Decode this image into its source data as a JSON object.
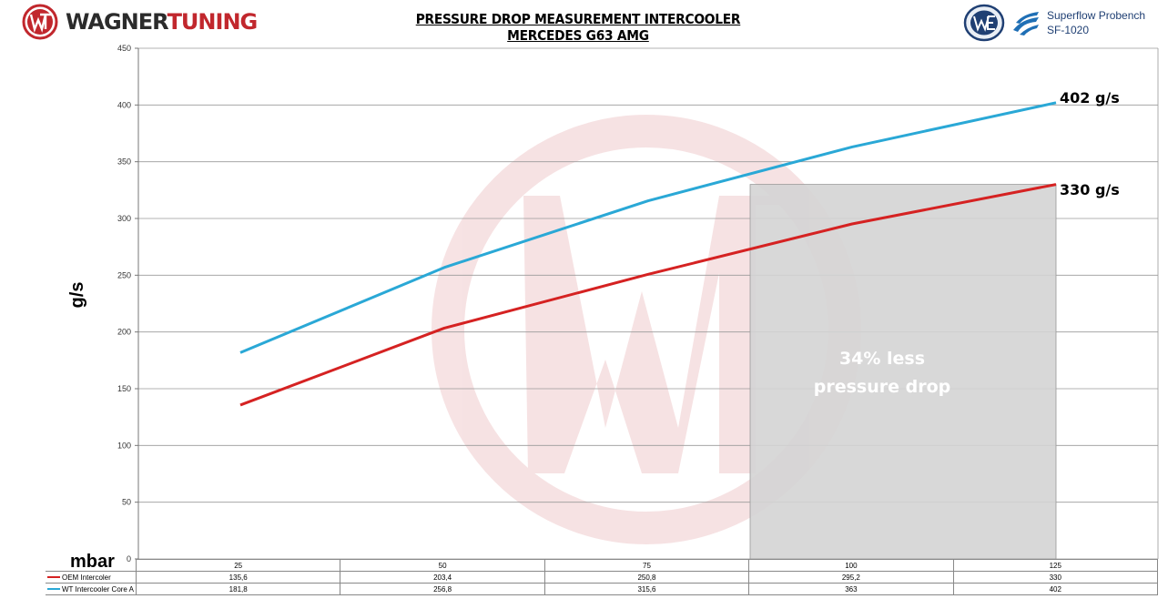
{
  "header": {
    "brand_part1": "WAGNER",
    "brand_part2": "TUNING",
    "bench_line1": "Superflow Probench",
    "bench_line2": "SF-1020"
  },
  "chart_data": {
    "type": "line",
    "title": "PRESSURE DROP MEASUREMENT INTERCOOLER MERCEDES G63 AMG",
    "xlabel": "mbar",
    "ylabel": "g/s",
    "categories": [
      "25",
      "50",
      "75",
      "100",
      "125"
    ],
    "ylim": [
      0,
      450
    ],
    "yticks": [
      0,
      50,
      100,
      150,
      200,
      250,
      300,
      350,
      400,
      450
    ],
    "grid": true,
    "legend": "data table below plot",
    "series": [
      {
        "name": "OEM Intercoler",
        "color": "#d52222",
        "values": [
          135.6,
          203.4,
          250.8,
          295.2,
          330
        ],
        "labels": [
          "135,6",
          "203,4",
          "250,8",
          "295,2",
          "330"
        ]
      },
      {
        "name": "WT Intercooler Core A",
        "color": "#2aa8d6",
        "values": [
          181.8,
          256.8,
          315.6,
          363,
          402
        ],
        "labels": [
          "181,8",
          "256,8",
          "315,6",
          "363",
          "402"
        ]
      }
    ],
    "annotations": {
      "end_label_wt": "402 g/s",
      "end_label_oem": "330 g/s",
      "highlight_line1": "34% less",
      "highlight_line2": "pressure drop"
    },
    "highlight": {
      "x_from": 87.5,
      "x_to": 125,
      "y_top": 330,
      "color": "#d4d4d4"
    }
  }
}
